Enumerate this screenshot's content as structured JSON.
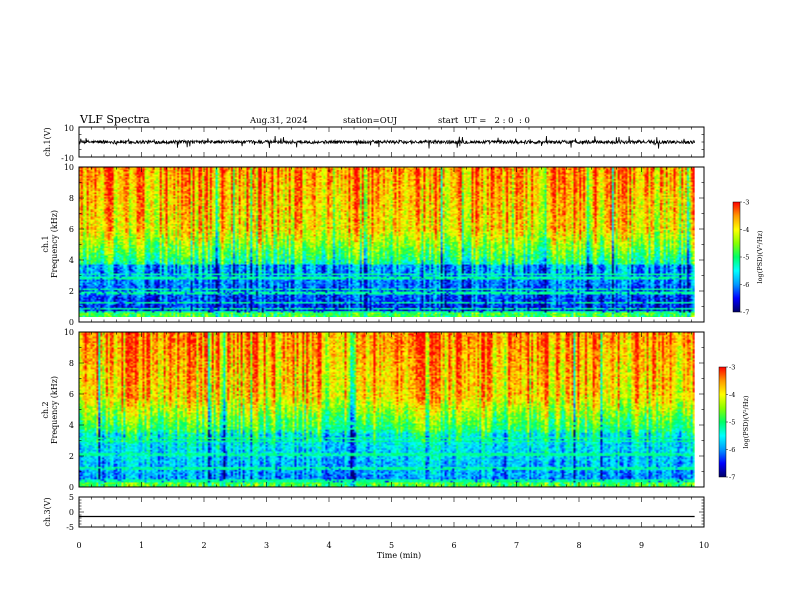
{
  "header": {
    "title": "VLF Spectra",
    "date": "Aug.31, 2024",
    "station": "station=OUJ",
    "start_time": "start  UT =   2 : 0  : 0"
  },
  "colors": {
    "colormap": [
      "#000066",
      "#0000ff",
      "#0099ff",
      "#00ffff",
      "#00ff66",
      "#88ff00",
      "#ffff00",
      "#ff9900",
      "#ff0000"
    ],
    "trace": "#000000",
    "frame": "#000000"
  },
  "chart_data": [
    {
      "type": "line",
      "ylabel": "ch.1(V)",
      "ylim": [
        -10,
        10
      ],
      "yticks": [
        "10",
        "-10"
      ],
      "series": [
        {
          "values_description_mean": 0
        }
      ]
    },
    {
      "type": "heatmap",
      "ylabel": "Frequency (kHz)",
      "ylabel_prefix": "ch.1",
      "ylim": [
        0,
        10
      ],
      "yticks": [
        "0",
        "2",
        "4",
        "6",
        "8",
        "10"
      ],
      "colorbar": {
        "label": "log(PSD)(V²/Hz)",
        "range": [
          -7,
          -3
        ],
        "ticks": [
          "-3",
          "-4",
          "-5",
          "-6",
          "-7"
        ]
      }
    },
    {
      "type": "heatmap",
      "ylabel": "Frequency (kHz)",
      "ylabel_prefix": "ch.2",
      "ylim": [
        0,
        10
      ],
      "yticks": [
        "0",
        "2",
        "4",
        "6",
        "8",
        "10"
      ],
      "colorbar": {
        "label": "log(PSD)(V²/Hz)",
        "range": [
          -7,
          -3
        ],
        "ticks": [
          "-3",
          "-4",
          "-5",
          "-6",
          "-7"
        ]
      }
    },
    {
      "type": "line",
      "ylabel": "ch.3(V)",
      "ylim": [
        -5,
        5
      ],
      "yticks": [
        "5",
        "0",
        "-5"
      ],
      "series": [
        {
          "constant": -1.5
        }
      ]
    }
  ],
  "xaxis": {
    "label": "Time (min)",
    "xlim": [
      0,
      10
    ],
    "ticks": [
      "0",
      "1",
      "2",
      "3",
      "4",
      "5",
      "6",
      "7",
      "8",
      "9",
      "10"
    ],
    "data_end": 9.85
  }
}
